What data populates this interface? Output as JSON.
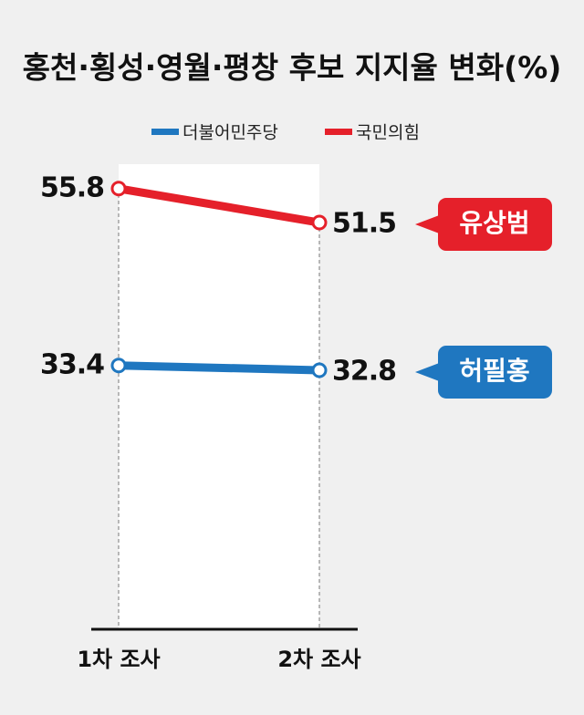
{
  "chart_data": {
    "type": "line",
    "title": "홍천·횡성·영월·평창 후보 지지율 변화(%)",
    "categories": [
      "1차 조사",
      "2차 조사"
    ],
    "series": [
      {
        "name": "국민의힘",
        "color": "#e5202a",
        "values": [
          55.8,
          51.5
        ],
        "label": "유상범"
      },
      {
        "name": "더불어민주당",
        "color": "#1f77c0",
        "values": [
          33.4,
          32.8
        ],
        "label": "허필홍"
      }
    ]
  }
}
